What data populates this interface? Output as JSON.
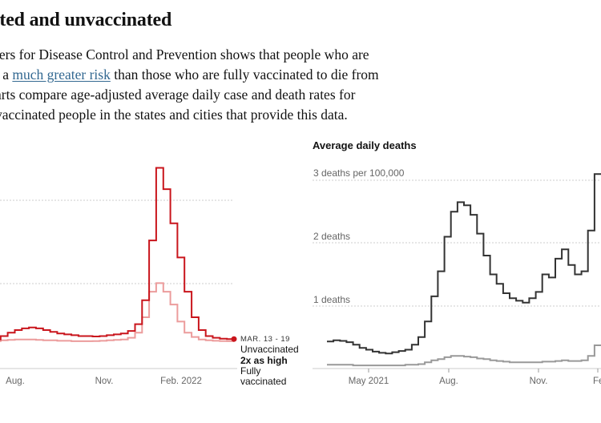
{
  "headline": "inated and unvaccinated",
  "intro": {
    "l1": "ters for Disease Control and Prevention shows that people who are",
    "l2_pre": "t a ",
    "l2_link": "much greater risk",
    "l2_post": " than those who are fully vaccinated to die from",
    "l3": "arts compare age-adjusted average daily case and death rates for",
    "l4": "vaccinated people in the states and cities that provide this data."
  },
  "colors": {
    "unvaccinated_cases": "#c9151c",
    "vaccinated_cases": "#ec9c9c",
    "unvaccinated_deaths": "#333333",
    "vaccinated_deaths": "#999999",
    "gridline": "#cccccc",
    "axis_text": "#666666"
  },
  "chart_data": [
    {
      "type": "line",
      "step": true,
      "title": "",
      "x_tick_labels": [
        "Aug.",
        "Nov.",
        "Feb. 2022"
      ],
      "grid": true,
      "series": [
        {
          "name": "Unvaccinated",
          "color": "#c9151c",
          "values": [
            340,
            380,
            420,
            450,
            470,
            480,
            470,
            450,
            430,
            410,
            400,
            390,
            380,
            380,
            375,
            380,
            390,
            400,
            410,
            440,
            520,
            800,
            1500,
            2350,
            2100,
            1700,
            1300,
            900,
            600,
            450,
            380,
            360,
            350,
            345
          ]
        },
        {
          "name": "Fully vaccinated",
          "color": "#ec9c9c",
          "values": [
            320,
            330,
            335,
            340,
            340,
            340,
            335,
            330,
            330,
            325,
            325,
            320,
            320,
            320,
            322,
            325,
            330,
            335,
            340,
            360,
            420,
            600,
            900,
            1000,
            900,
            750,
            550,
            420,
            370,
            340,
            330,
            325,
            322,
            320
          ]
        }
      ],
      "annotation": {
        "date": "MAR. 13 - 19",
        "label_top": "Unvaccinated",
        "ratio": "2x as high",
        "label_bottom_1": "Fully",
        "label_bottom_2": "vaccinated"
      }
    },
    {
      "type": "line",
      "step": true,
      "title": "Average daily deaths",
      "y_tick_labels": [
        "3 deaths per 100,000",
        "2 deaths",
        "1 deaths"
      ],
      "y_ticks": [
        3,
        2,
        1
      ],
      "ylim": [
        0,
        3
      ],
      "x_tick_labels": [
        "May 2021",
        "Aug.",
        "Nov.",
        "Fe"
      ],
      "grid": true,
      "series": [
        {
          "name": "Unvaccinated",
          "color": "#333333",
          "values": [
            0.43,
            0.45,
            0.44,
            0.42,
            0.38,
            0.33,
            0.3,
            0.27,
            0.25,
            0.24,
            0.26,
            0.28,
            0.3,
            0.38,
            0.5,
            0.75,
            1.15,
            1.55,
            2.1,
            2.5,
            2.65,
            2.6,
            2.45,
            2.15,
            1.8,
            1.5,
            1.35,
            1.2,
            1.12,
            1.08,
            1.05,
            1.12,
            1.22,
            1.5,
            1.45,
            1.75,
            1.9,
            1.65,
            1.5,
            1.55,
            2.2,
            3.1
          ]
        },
        {
          "name": "Fully vaccinated",
          "color": "#999999",
          "values": [
            0.06,
            0.06,
            0.06,
            0.06,
            0.05,
            0.05,
            0.05,
            0.05,
            0.05,
            0.05,
            0.05,
            0.05,
            0.06,
            0.06,
            0.07,
            0.1,
            0.13,
            0.15,
            0.18,
            0.2,
            0.2,
            0.19,
            0.18,
            0.16,
            0.15,
            0.13,
            0.12,
            0.11,
            0.1,
            0.1,
            0.1,
            0.1,
            0.1,
            0.11,
            0.11,
            0.12,
            0.13,
            0.12,
            0.12,
            0.13,
            0.2,
            0.37
          ]
        }
      ]
    }
  ]
}
